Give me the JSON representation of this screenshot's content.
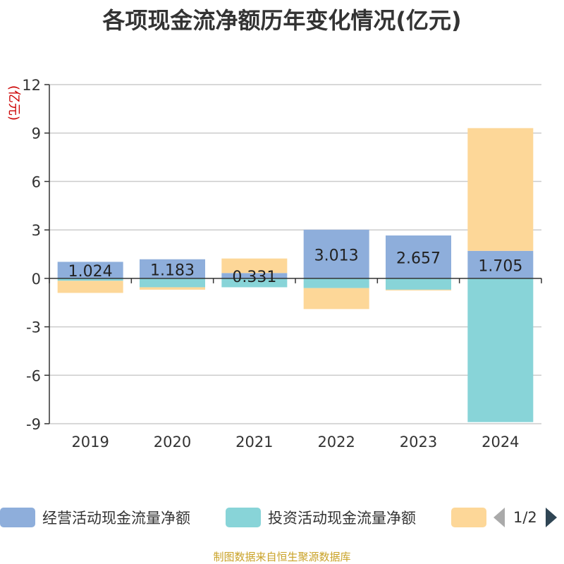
{
  "chart_data": {
    "type": "bar",
    "stacked": true,
    "title": "各项现金流净额历年变化情况(亿元)",
    "ylabel": "(亿元)",
    "categories": [
      "2019",
      "2020",
      "2021",
      "2022",
      "2023",
      "2024"
    ],
    "ylim": [
      -9,
      12
    ],
    "yticks": [
      12,
      9,
      6,
      3,
      0,
      -3,
      -6,
      -9
    ],
    "grid": true,
    "legend_position": "bottom",
    "series": [
      {
        "name": "经营活动现金流量净额",
        "color": "#8eaedb",
        "values": [
          1.024,
          1.183,
          0.331,
          3.013,
          2.657,
          1.705
        ],
        "labels": [
          "1.024",
          "1.183",
          "0.331",
          "3.013",
          "2.657",
          "1.705"
        ]
      },
      {
        "name": "投资活动现金流量净额",
        "color": "#88d4d8",
        "values": [
          -0.15,
          -0.55,
          -0.55,
          -0.6,
          -0.7,
          -8.9
        ]
      },
      {
        "name": "",
        "color": "#fdd798",
        "values": [
          -0.75,
          -0.15,
          0.9,
          -1.3,
          -0.05,
          7.6
        ]
      }
    ]
  },
  "legend": {
    "page_indicator": "1/2"
  },
  "footer": {
    "source": "制图数据来自恒生聚源数据库"
  },
  "icons": {
    "prev": "chevron-left-icon",
    "next": "chevron-right-icon"
  }
}
